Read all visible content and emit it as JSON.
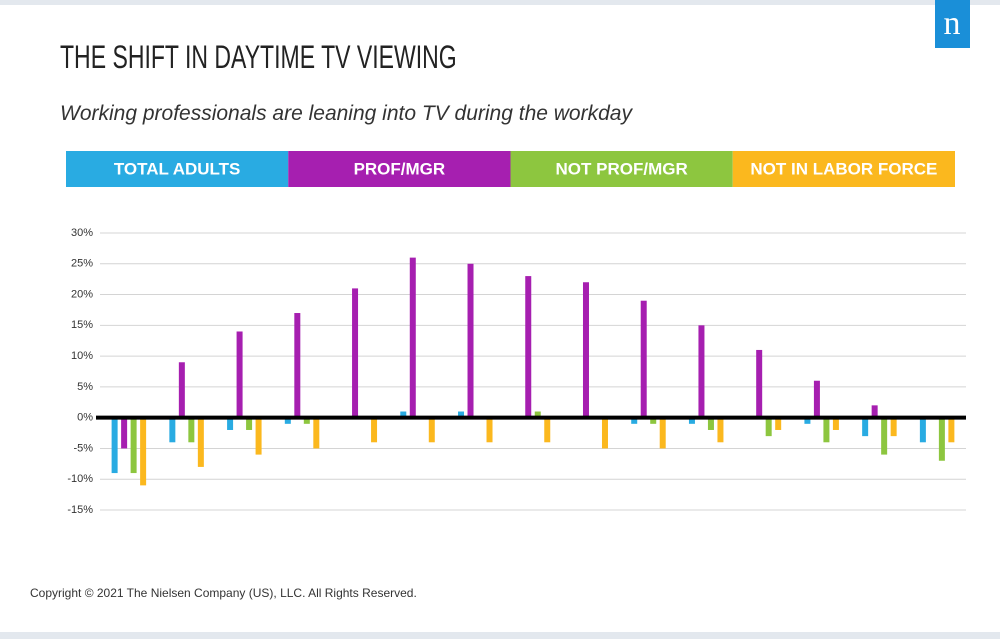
{
  "logo": "n",
  "copyright": "Copyright © 2021 The Nielsen Company (US), LLC. All Rights Reserved.",
  "chart_data": {
    "type": "bar",
    "title": "THE SHIFT IN DAYTIME TV VIEWING",
    "subtitle": "Working professionals are leaning into TV during the workday",
    "categories": [
      null,
      null,
      null,
      null,
      null,
      null,
      null,
      null,
      null,
      null,
      null,
      null,
      null,
      null,
      null
    ],
    "series": [
      {
        "name": "TOTAL ADULTS",
        "color": "#29abe2",
        "values": [
          -9,
          -4,
          -2,
          -1,
          0,
          1,
          1,
          0,
          0,
          -1,
          -1,
          0,
          -1,
          -3,
          -4
        ]
      },
      {
        "name": "PROF/MGR",
        "color": "#a61fb0",
        "values": [
          -5,
          9,
          14,
          17,
          21,
          26,
          25,
          23,
          22,
          19,
          15,
          11,
          6,
          2,
          0
        ]
      },
      {
        "name": "NOT PROF/MGR",
        "color": "#8dc63f",
        "values": [
          -9,
          -4,
          -2,
          -1,
          0,
          0,
          0,
          1,
          0,
          -1,
          -2,
          -3,
          -4,
          -6,
          -7
        ]
      },
      {
        "name": "NOT IN LABOR FORCE",
        "color": "#fbb81e",
        "values": [
          -11,
          -8,
          -6,
          -5,
          -4,
          -4,
          -4,
          -4,
          -5,
          -5,
          -4,
          -2,
          -2,
          -3,
          -4
        ]
      }
    ],
    "ylim": [
      -15,
      30
    ],
    "yticks": [
      {
        "value": -15,
        "label": "-15%"
      },
      {
        "value": -10,
        "label": "-10%"
      },
      {
        "value": -5,
        "label": "-5%"
      },
      {
        "value": 0,
        "label": "0%"
      },
      {
        "value": 5,
        "label": "5%"
      },
      {
        "value": 10,
        "label": "10%"
      },
      {
        "value": 15,
        "label": "15%"
      },
      {
        "value": 20,
        "label": "20%"
      },
      {
        "value": 25,
        "label": "25%"
      },
      {
        "value": 30,
        "label": "30%"
      }
    ],
    "grid": true
  }
}
